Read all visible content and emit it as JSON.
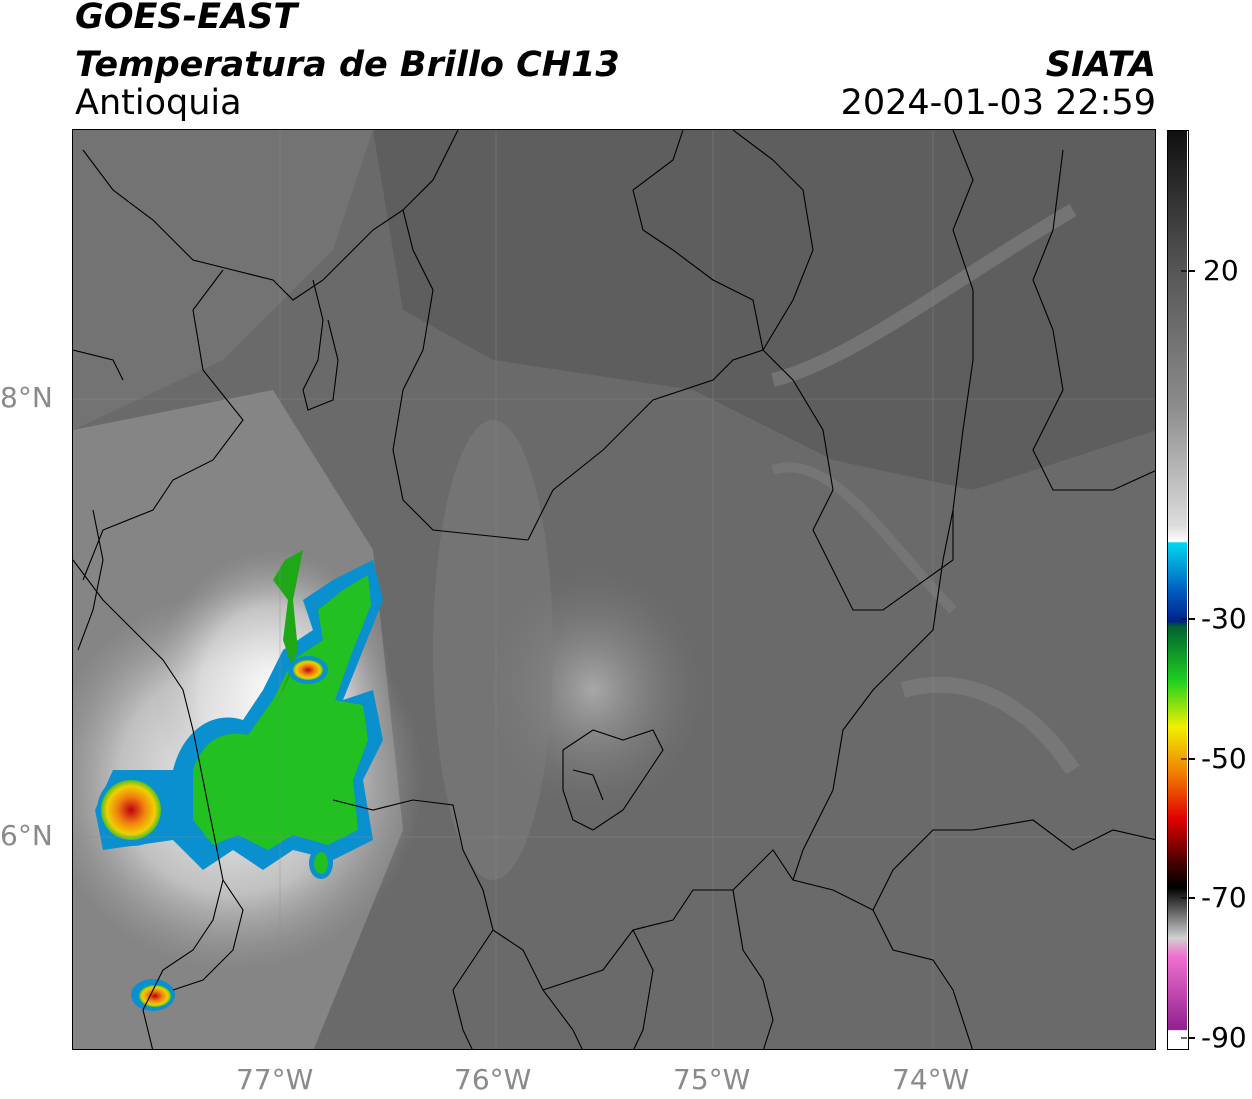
{
  "header": {
    "line1": "GOES-EAST",
    "line2": "Temperatura de Brillo CH13",
    "line3": "Antioquia",
    "org": "SIATA",
    "datetime": "2024-01-03 22:59"
  },
  "axes": {
    "x_ticks": [
      "77°W",
      "76°W",
      "75°W",
      "74°W"
    ],
    "y_ticks": [
      "8°N",
      "6°N"
    ]
  },
  "colorbar": {
    "ticks": [
      "20",
      "-30",
      "-50",
      "-70",
      "-90"
    ]
  },
  "colors": {
    "land_gray": "#6e6e6e",
    "cold_green": "#22c020",
    "cold_blue": "#0a6fb8",
    "warm_red": "#e02010",
    "cold_yellow": "#f0d000"
  }
}
